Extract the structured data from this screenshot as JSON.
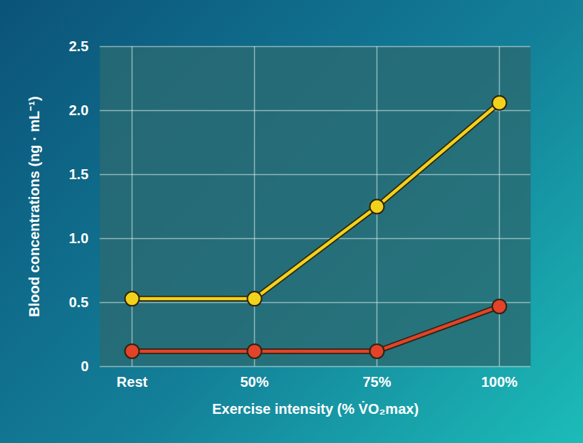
{
  "chart_data": {
    "type": "line",
    "x_label": "Exercise intensity (% V̇O₂max)",
    "y_label": "Blood concentrations (ng · mL⁻¹)",
    "categories": [
      "Rest",
      "50%",
      "75%",
      "100%"
    ],
    "series": [
      {
        "color": "#f2d21b",
        "marker": "circle",
        "values": [
          0.53,
          0.53,
          1.25,
          2.06
        ]
      },
      {
        "color": "#e2432a",
        "marker": "circle",
        "values": [
          0.12,
          0.12,
          0.12,
          0.47
        ]
      }
    ],
    "ylim": [
      0,
      2.5
    ],
    "yticks": [
      0,
      0.5,
      {
        "value": 1,
        "label": "1.0"
      },
      1.5,
      {
        "value": 2,
        "label": "2.0"
      },
      2.5
    ],
    "grid": true
  }
}
